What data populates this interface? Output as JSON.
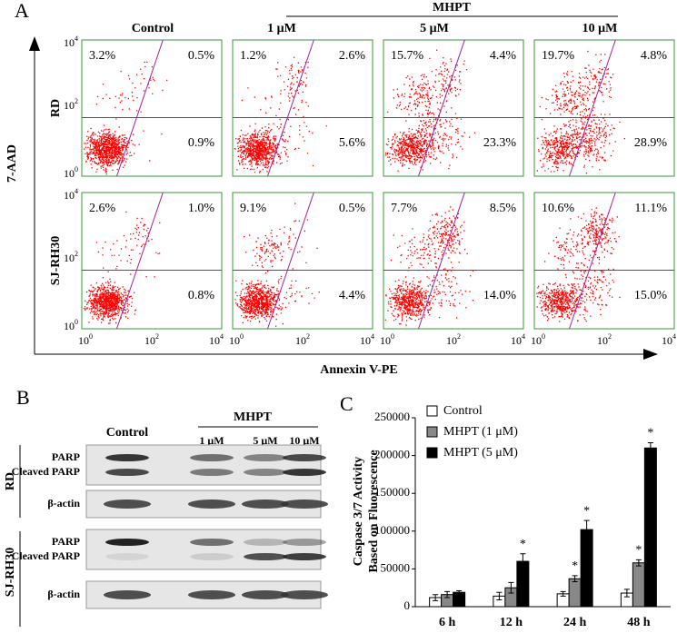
{
  "panel_a": {
    "label": "A",
    "group_label": "MHPT",
    "columns": [
      "Control",
      "1 μM",
      "5 μM",
      "10 μM"
    ],
    "rows": [
      "RD",
      "SJ-RH30"
    ],
    "y_axis_label": "7-AAD",
    "x_axis_label": "Annexin V-PE",
    "tick_labels": [
      {
        "base": "10",
        "exp": "0"
      },
      {
        "base": "10",
        "exp": "2"
      },
      {
        "base": "10",
        "exp": "4"
      }
    ],
    "quadrants": [
      [
        {
          "ul": "3.2%",
          "ur": "0.5%",
          "lr": "0.9%"
        },
        {
          "ul": "1.2%",
          "ur": "2.6%",
          "lr": "5.6%"
        },
        {
          "ul": "15.7%",
          "ur": "4.4%",
          "lr": "23.3%"
        },
        {
          "ul": "19.7%",
          "ur": "4.8%",
          "lr": "28.9%"
        }
      ],
      [
        {
          "ul": "2.6%",
          "ur": "1.0%",
          "lr": "0.8%"
        },
        {
          "ul": "9.1%",
          "ur": "0.5%",
          "lr": "4.4%"
        },
        {
          "ul": "7.7%",
          "ur": "8.5%",
          "lr": "14.0%"
        },
        {
          "ul": "10.6%",
          "ur": "11.1%",
          "lr": "15.0%"
        }
      ]
    ]
  },
  "panel_b": {
    "label": "B",
    "group_label": "MHPT",
    "columns": [
      "Control",
      "1 μM",
      "5 μM",
      "10 μM"
    ],
    "blocks": [
      {
        "row": "RD",
        "bands": [
          "PARP",
          "Cleaved PARP"
        ],
        "loading": "β-actin"
      },
      {
        "row": "SJ-RH30",
        "bands": [
          "PARP",
          "Cleaved PARP"
        ],
        "loading": "β-actin"
      }
    ]
  },
  "chart_data": {
    "type": "bar",
    "panel_label": "C",
    "y_label": [
      "Caspase 3/7 Activity",
      "Based on Fluorescence"
    ],
    "categories": [
      "6 h",
      "12 h",
      "24 h",
      "48 h"
    ],
    "series": [
      {
        "name": "Control",
        "color": "#ffffff",
        "values": [
          12000,
          14000,
          17000,
          18000
        ],
        "errors": [
          4000,
          5000,
          3000,
          5000
        ]
      },
      {
        "name": "MHPT (1 μM)",
        "color": "#888888",
        "values": [
          16000,
          25000,
          37000,
          58000
        ],
        "errors": [
          4000,
          7000,
          4000,
          4000
        ],
        "significance": [
          null,
          null,
          "*",
          "*"
        ]
      },
      {
        "name": "MHPT (5 μM)",
        "color": "#000000",
        "values": [
          19000,
          60000,
          102000,
          210000
        ],
        "errors": [
          2000,
          10000,
          12000,
          7000
        ],
        "significance": [
          null,
          "*",
          "*",
          "*"
        ]
      }
    ],
    "ylim": [
      0,
      250000
    ],
    "yticks": [
      0,
      50000,
      100000,
      150000,
      200000,
      250000
    ]
  }
}
